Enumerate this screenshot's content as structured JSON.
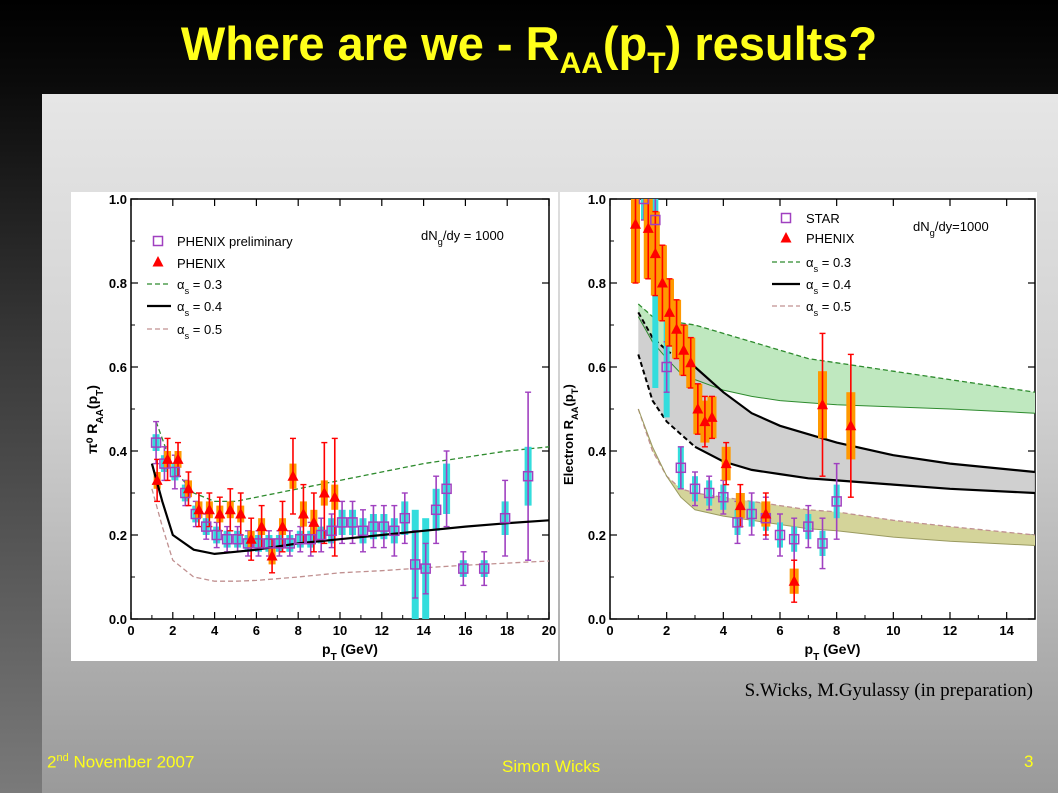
{
  "slide": {
    "title_main": "Where are we - R",
    "title_sub1": "AA",
    "title_mid": "(p",
    "title_sub2": "T",
    "title_end": ") results?",
    "citation": "S.Wicks, M.Gyulassy (in preparation)",
    "footer_day": "2",
    "footer_ord": "nd",
    "footer_rest": " November 2007",
    "footer_author": "Simon Wicks",
    "footer_page": "3"
  },
  "colors": {
    "title": "#ffff1a",
    "star": "#a040c0",
    "phenix": "#ff0000",
    "phenix_err": "#ff9900",
    "prelim_err": "#33dddd",
    "green": "#2e8b2e",
    "pink": "#c09090",
    "green_fill": "#bfe8bf",
    "gray_fill": "#c8c8c8",
    "olive_fill": "#d4d49a"
  },
  "chart_data": [
    {
      "type": "scatter",
      "id": "pi0",
      "xlabel": "p",
      "xlabel_sub": "T",
      "xlabel_unit": " (GeV)",
      "ylabel": "π⁰ R",
      "ylabel_sub": "AA",
      "ylabel_end": "(p",
      "ylabel_sub2": "T",
      "ylabel_close": ")",
      "xlim": [
        0,
        20
      ],
      "ylim": [
        0,
        1.0
      ],
      "xticks": [
        0,
        2,
        4,
        6,
        8,
        10,
        12,
        14,
        16,
        18,
        20
      ],
      "yticks": [
        0.0,
        0.2,
        0.4,
        0.6,
        0.8,
        1.0
      ],
      "annotation": "dN",
      "annotation_sub": "g",
      "annotation_end": "/dy = 1000",
      "legend": {
        "prelim": "PHENIX preliminary",
        "phenix": "PHENIX",
        "a03": "α",
        "a03_sub": "s",
        "a03_end": " = 0.3",
        "a04": "α",
        "a04_sub": "s",
        "a04_end": " = 0.4",
        "a05": "α",
        "a05_sub": "s",
        "a05_end": " = 0.5"
      },
      "prelim_points": [
        {
          "x": 1.2,
          "y": 0.42,
          "e": 0.05,
          "s": 0.02
        },
        {
          "x": 1.6,
          "y": 0.37,
          "e": 0.04,
          "s": 0.02
        },
        {
          "x": 2.1,
          "y": 0.35,
          "e": 0.04,
          "s": 0.02
        },
        {
          "x": 2.6,
          "y": 0.3,
          "e": 0.03,
          "s": 0.02
        },
        {
          "x": 3.1,
          "y": 0.25,
          "e": 0.03,
          "s": 0.02
        },
        {
          "x": 3.6,
          "y": 0.22,
          "e": 0.03,
          "s": 0.02
        },
        {
          "x": 4.1,
          "y": 0.2,
          "e": 0.03,
          "s": 0.02
        },
        {
          "x": 4.6,
          "y": 0.19,
          "e": 0.03,
          "s": 0.02
        },
        {
          "x": 5.1,
          "y": 0.19,
          "e": 0.03,
          "s": 0.02
        },
        {
          "x": 5.6,
          "y": 0.18,
          "e": 0.03,
          "s": 0.02
        },
        {
          "x": 6.1,
          "y": 0.18,
          "e": 0.03,
          "s": 0.02
        },
        {
          "x": 6.6,
          "y": 0.18,
          "e": 0.03,
          "s": 0.02
        },
        {
          "x": 7.1,
          "y": 0.18,
          "e": 0.03,
          "s": 0.02
        },
        {
          "x": 7.6,
          "y": 0.18,
          "e": 0.03,
          "s": 0.02
        },
        {
          "x": 8.1,
          "y": 0.19,
          "e": 0.03,
          "s": 0.02
        },
        {
          "x": 8.6,
          "y": 0.19,
          "e": 0.04,
          "s": 0.02
        },
        {
          "x": 9.1,
          "y": 0.2,
          "e": 0.04,
          "s": 0.02
        },
        {
          "x": 9.6,
          "y": 0.21,
          "e": 0.04,
          "s": 0.03
        },
        {
          "x": 10.1,
          "y": 0.23,
          "e": 0.05,
          "s": 0.03
        },
        {
          "x": 10.6,
          "y": 0.23,
          "e": 0.05,
          "s": 0.03
        },
        {
          "x": 11.1,
          "y": 0.21,
          "e": 0.05,
          "s": 0.03
        },
        {
          "x": 11.6,
          "y": 0.22,
          "e": 0.05,
          "s": 0.03
        },
        {
          "x": 12.1,
          "y": 0.22,
          "e": 0.05,
          "s": 0.03
        },
        {
          "x": 12.6,
          "y": 0.21,
          "e": 0.06,
          "s": 0.03
        },
        {
          "x": 13.1,
          "y": 0.24,
          "e": 0.06,
          "s": 0.04
        },
        {
          "x": 13.6,
          "y": 0.13,
          "e": 0.08,
          "s": 0.13
        },
        {
          "x": 14.1,
          "y": 0.12,
          "e": 0.06,
          "s": 0.12
        },
        {
          "x": 14.6,
          "y": 0.26,
          "e": 0.08,
          "s": 0.05
        },
        {
          "x": 15.1,
          "y": 0.31,
          "e": 0.09,
          "s": 0.06
        },
        {
          "x": 15.9,
          "y": 0.12,
          "e": 0.04,
          "s": 0.02
        },
        {
          "x": 16.9,
          "y": 0.12,
          "e": 0.04,
          "s": 0.02
        },
        {
          "x": 17.9,
          "y": 0.24,
          "e": 0.09,
          "s": 0.04
        },
        {
          "x": 19.0,
          "y": 0.34,
          "e": 0.2,
          "s": 0.07
        }
      ],
      "phenix_points": [
        {
          "x": 1.25,
          "y": 0.33,
          "e": 0.05,
          "s": 0.02
        },
        {
          "x": 1.75,
          "y": 0.38,
          "e": 0.05,
          "s": 0.02
        },
        {
          "x": 2.25,
          "y": 0.38,
          "e": 0.04,
          "s": 0.02
        },
        {
          "x": 2.75,
          "y": 0.31,
          "e": 0.04,
          "s": 0.02
        },
        {
          "x": 3.25,
          "y": 0.26,
          "e": 0.04,
          "s": 0.02
        },
        {
          "x": 3.75,
          "y": 0.26,
          "e": 0.04,
          "s": 0.02
        },
        {
          "x": 4.25,
          "y": 0.25,
          "e": 0.04,
          "s": 0.02
        },
        {
          "x": 4.75,
          "y": 0.26,
          "e": 0.05,
          "s": 0.02
        },
        {
          "x": 5.25,
          "y": 0.25,
          "e": 0.05,
          "s": 0.02
        },
        {
          "x": 5.75,
          "y": 0.19,
          "e": 0.05,
          "s": 0.02
        },
        {
          "x": 6.25,
          "y": 0.22,
          "e": 0.05,
          "s": 0.02
        },
        {
          "x": 6.75,
          "y": 0.15,
          "e": 0.04,
          "s": 0.02
        },
        {
          "x": 7.25,
          "y": 0.22,
          "e": 0.06,
          "s": 0.02
        },
        {
          "x": 7.75,
          "y": 0.34,
          "e": 0.09,
          "s": 0.03
        },
        {
          "x": 8.25,
          "y": 0.25,
          "e": 0.07,
          "s": 0.03
        },
        {
          "x": 8.75,
          "y": 0.23,
          "e": 0.07,
          "s": 0.03
        },
        {
          "x": 9.25,
          "y": 0.3,
          "e": 0.12,
          "s": 0.03
        },
        {
          "x": 9.75,
          "y": 0.29,
          "e": 0.14,
          "s": 0.03
        }
      ],
      "curves": {
        "a03": {
          "x": [
            1.2,
            2,
            3,
            4,
            5,
            6,
            7,
            8,
            10,
            12,
            14,
            16,
            18,
            20
          ],
          "y": [
            0.47,
            0.36,
            0.3,
            0.28,
            0.28,
            0.29,
            0.3,
            0.31,
            0.33,
            0.35,
            0.37,
            0.385,
            0.4,
            0.41
          ]
        },
        "a04": {
          "x": [
            1.0,
            1.5,
            2,
            3,
            4,
            5,
            6,
            8,
            10,
            12,
            14,
            16,
            18,
            20
          ],
          "y": [
            0.37,
            0.28,
            0.2,
            0.165,
            0.155,
            0.16,
            0.165,
            0.18,
            0.19,
            0.2,
            0.21,
            0.22,
            0.228,
            0.235
          ]
        },
        "a05": {
          "x": [
            1.0,
            1.5,
            2,
            3,
            4,
            5,
            6,
            8,
            10,
            12,
            14,
            16,
            18,
            20
          ],
          "y": [
            0.31,
            0.22,
            0.14,
            0.1,
            0.09,
            0.09,
            0.092,
            0.1,
            0.11,
            0.115,
            0.122,
            0.128,
            0.133,
            0.138
          ]
        }
      }
    },
    {
      "type": "scatter",
      "id": "electron",
      "xlabel": "p",
      "xlabel_sub": "T",
      "xlabel_unit": " (GeV)",
      "ylabel": "Electron R",
      "ylabel_sub": "AA",
      "ylabel_end": "(p",
      "ylabel_sub2": "T",
      "ylabel_close": ")",
      "xlim": [
        0,
        15
      ],
      "ylim": [
        0,
        1.0
      ],
      "xticks": [
        0,
        2,
        4,
        6,
        8,
        10,
        12,
        14
      ],
      "yticks": [
        0.0,
        0.2,
        0.4,
        0.6,
        0.8,
        1.0
      ],
      "annotation": "dN",
      "annotation_sub": "g",
      "annotation_end": "/dy=1000",
      "legend": {
        "star": "STAR",
        "phenix": "PHENIX",
        "a03": "α",
        "a03_sub": "s",
        "a03_end": " = 0.3",
        "a04": "α",
        "a04_sub": "s",
        "a04_end": " = 0.4",
        "a05": "α",
        "a05_sub": "s",
        "a05_end": " = 0.5"
      },
      "star_points": [
        {
          "x": 1.2,
          "y": 1.0,
          "e": 0.05,
          "s": 0.05
        },
        {
          "x": 1.6,
          "y": 0.95,
          "e": 0.08,
          "s": 0.4
        },
        {
          "x": 2.0,
          "y": 0.6,
          "e": 0.06,
          "s": 0.12
        },
        {
          "x": 2.5,
          "y": 0.36,
          "e": 0.05,
          "s": 0.05
        },
        {
          "x": 3.0,
          "y": 0.31,
          "e": 0.04,
          "s": 0.03
        },
        {
          "x": 3.5,
          "y": 0.3,
          "e": 0.04,
          "s": 0.03
        },
        {
          "x": 4.0,
          "y": 0.29,
          "e": 0.04,
          "s": 0.03
        },
        {
          "x": 4.5,
          "y": 0.23,
          "e": 0.05,
          "s": 0.03
        },
        {
          "x": 5.0,
          "y": 0.25,
          "e": 0.05,
          "s": 0.03
        },
        {
          "x": 5.5,
          "y": 0.24,
          "e": 0.05,
          "s": 0.03
        },
        {
          "x": 6.0,
          "y": 0.2,
          "e": 0.05,
          "s": 0.03
        },
        {
          "x": 6.5,
          "y": 0.19,
          "e": 0.05,
          "s": 0.03
        },
        {
          "x": 7.0,
          "y": 0.22,
          "e": 0.05,
          "s": 0.03
        },
        {
          "x": 7.5,
          "y": 0.18,
          "e": 0.06,
          "s": 0.03
        },
        {
          "x": 8.0,
          "y": 0.28,
          "e": 0.09,
          "s": 0.04
        }
      ],
      "phenix_points": [
        {
          "x": 0.9,
          "y": 0.94,
          "e": 0.14,
          "s": 0.14
        },
        {
          "x": 1.35,
          "y": 0.93,
          "e": 0.12,
          "s": 0.12
        },
        {
          "x": 1.6,
          "y": 0.87,
          "e": 0.1,
          "s": 0.1
        },
        {
          "x": 1.85,
          "y": 0.8,
          "e": 0.09,
          "s": 0.09
        },
        {
          "x": 2.1,
          "y": 0.73,
          "e": 0.08,
          "s": 0.08
        },
        {
          "x": 2.35,
          "y": 0.69,
          "e": 0.07,
          "s": 0.07
        },
        {
          "x": 2.6,
          "y": 0.64,
          "e": 0.06,
          "s": 0.06
        },
        {
          "x": 2.85,
          "y": 0.61,
          "e": 0.06,
          "s": 0.06
        },
        {
          "x": 3.1,
          "y": 0.5,
          "e": 0.06,
          "s": 0.06
        },
        {
          "x": 3.35,
          "y": 0.47,
          "e": 0.06,
          "s": 0.05
        },
        {
          "x": 3.6,
          "y": 0.48,
          "e": 0.05,
          "s": 0.05
        },
        {
          "x": 4.1,
          "y": 0.37,
          "e": 0.05,
          "s": 0.04
        },
        {
          "x": 4.6,
          "y": 0.27,
          "e": 0.05,
          "s": 0.03
        },
        {
          "x": 5.5,
          "y": 0.25,
          "e": 0.05,
          "s": 0.03
        },
        {
          "x": 6.5,
          "y": 0.09,
          "e": 0.05,
          "s": 0.03
        },
        {
          "x": 7.5,
          "y": 0.51,
          "e": 0.17,
          "s": 0.08
        },
        {
          "x": 8.5,
          "y": 0.46,
          "e": 0.17,
          "s": 0.08
        }
      ],
      "bands": {
        "x": [
          1.0,
          1.5,
          2.0,
          2.5,
          3.0,
          4.0,
          5.0,
          6.0,
          7.0,
          8.0,
          10.0,
          12.0,
          15.0
        ],
        "a03_hi": [
          0.75,
          0.72,
          0.71,
          0.705,
          0.7,
          0.68,
          0.66,
          0.64,
          0.62,
          0.61,
          0.59,
          0.57,
          0.54
        ],
        "a03_lo": [
          0.72,
          0.66,
          0.62,
          0.585,
          0.57,
          0.545,
          0.53,
          0.52,
          0.515,
          0.51,
          0.505,
          0.5,
          0.49
        ],
        "a04_hi": [
          0.73,
          0.67,
          0.64,
          0.615,
          0.6,
          0.54,
          0.49,
          0.46,
          0.44,
          0.42,
          0.39,
          0.37,
          0.35
        ],
        "a04_lo": [
          0.63,
          0.52,
          0.47,
          0.44,
          0.41,
          0.375,
          0.355,
          0.345,
          0.335,
          0.33,
          0.32,
          0.31,
          0.3
        ],
        "a05_hi": [
          0.5,
          0.4,
          0.34,
          0.31,
          0.3,
          0.29,
          0.28,
          0.27,
          0.26,
          0.255,
          0.235,
          0.22,
          0.2
        ],
        "a05_lo": [
          0.5,
          0.41,
          0.34,
          0.29,
          0.26,
          0.245,
          0.235,
          0.225,
          0.215,
          0.21,
          0.195,
          0.185,
          0.175
        ]
      }
    }
  ]
}
